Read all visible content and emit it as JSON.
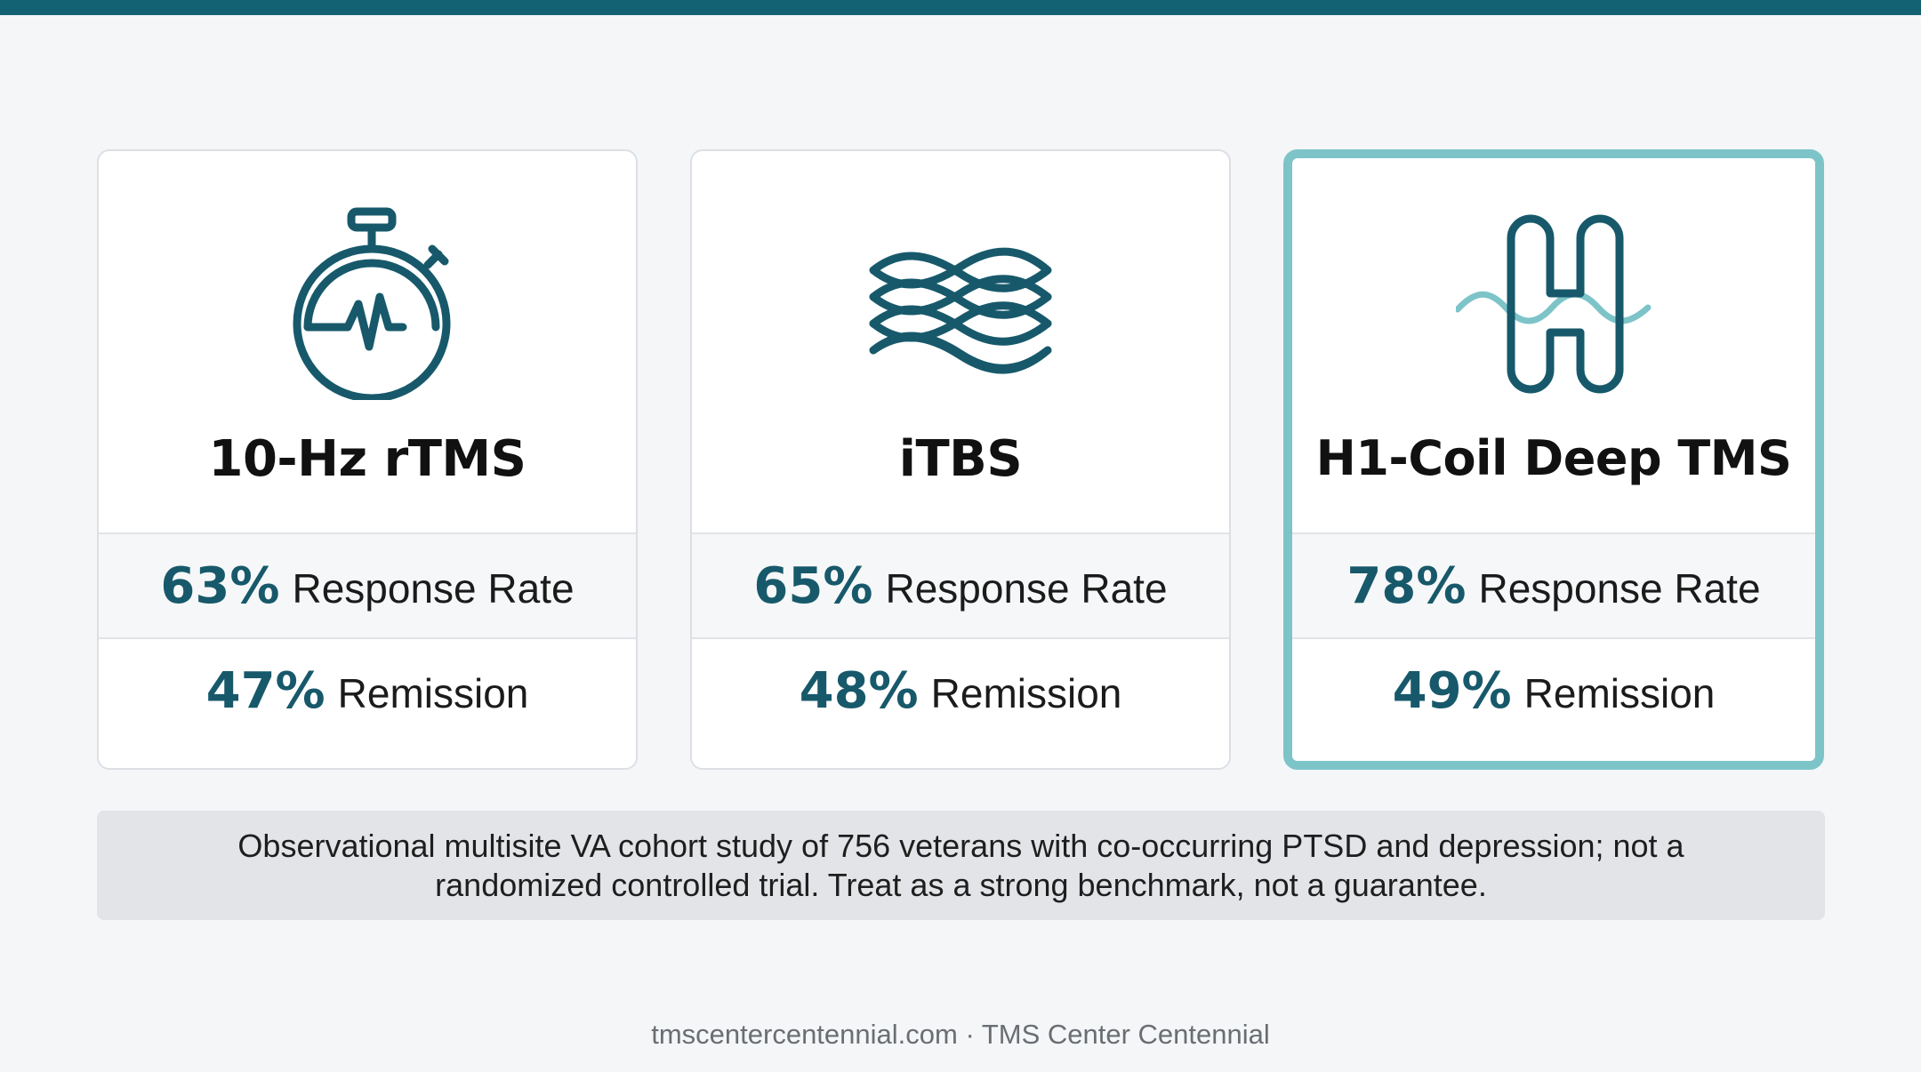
{
  "brand_color": "#136274",
  "highlight_color": "#7dc4c9",
  "cards": [
    {
      "icon": "stopwatch-pulse-icon",
      "title": "10-Hz rTMS",
      "response_pct": "63%",
      "response_label": "Response Rate",
      "remission_pct": "47%",
      "remission_label": "Remission",
      "highlighted": false
    },
    {
      "icon": "layered-waves-icon",
      "title": "iTBS",
      "response_pct": "65%",
      "response_label": "Response Rate",
      "remission_pct": "48%",
      "remission_label": "Remission",
      "highlighted": false
    },
    {
      "icon": "h-coil-wave-icon",
      "title": "H1-Coil Deep TMS",
      "response_pct": "78%",
      "response_label": "Response Rate",
      "remission_pct": "49%",
      "remission_label": "Remission",
      "highlighted": true
    }
  ],
  "note": {
    "line1": "Observational multisite VA cohort study of 756 veterans with co-occurring PTSD and depression; not a",
    "line2": "randomized controlled trial. Treat as a strong benchmark, not a guarantee."
  },
  "footer": "tmscentercentennial.com · TMS Center Centennial"
}
